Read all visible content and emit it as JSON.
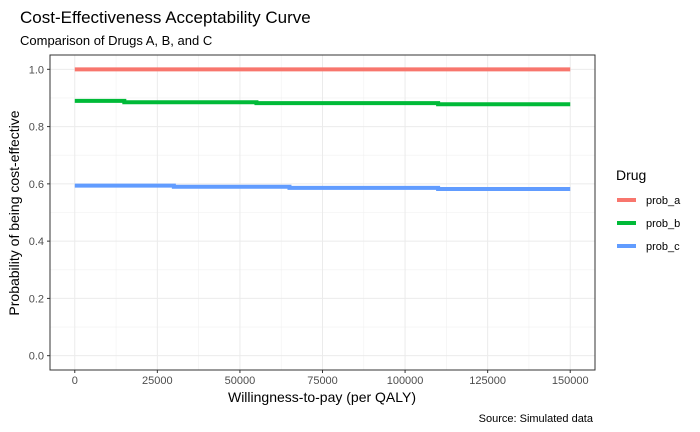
{
  "chart_data": {
    "type": "line",
    "title": "Cost-Effectiveness Acceptability Curve",
    "subtitle": "Comparison of Drugs A, B, and C",
    "xlabel": "Willingness-to-pay (per QALY)",
    "ylabel": "Probability of being cost-effective",
    "caption": "Source: Simulated data",
    "xlim": [
      -7500,
      157500
    ],
    "ylim": [
      -0.05,
      1.05
    ],
    "x_ticks": [
      0,
      25000,
      50000,
      75000,
      100000,
      125000,
      150000
    ],
    "x_tick_labels": [
      "0",
      "25000",
      "50000",
      "75000",
      "100000",
      "125000",
      "150000"
    ],
    "y_ticks": [
      0.0,
      0.2,
      0.4,
      0.6,
      0.8,
      1.0
    ],
    "y_tick_labels": [
      "0.0",
      "0.2",
      "0.4",
      "0.6",
      "0.8",
      "1.0"
    ],
    "grid": true,
    "legend": {
      "title": "Drug",
      "position": "right"
    },
    "series": [
      {
        "name": "prob_a",
        "color": "#F8766D",
        "points": [
          [
            0,
            1.0
          ],
          [
            150000,
            1.0
          ]
        ]
      },
      {
        "name": "prob_b",
        "color": "#00BA38",
        "points": [
          [
            0,
            0.89
          ],
          [
            15000,
            0.89
          ],
          [
            15000,
            0.885
          ],
          [
            55000,
            0.885
          ],
          [
            55000,
            0.882
          ],
          [
            110000,
            0.882
          ],
          [
            110000,
            0.878
          ],
          [
            150000,
            0.878
          ]
        ]
      },
      {
        "name": "prob_c",
        "color": "#619CFF",
        "points": [
          [
            0,
            0.594
          ],
          [
            30000,
            0.594
          ],
          [
            30000,
            0.59
          ],
          [
            65000,
            0.59
          ],
          [
            65000,
            0.586
          ],
          [
            110000,
            0.586
          ],
          [
            110000,
            0.582
          ],
          [
            150000,
            0.582
          ]
        ]
      }
    ]
  }
}
